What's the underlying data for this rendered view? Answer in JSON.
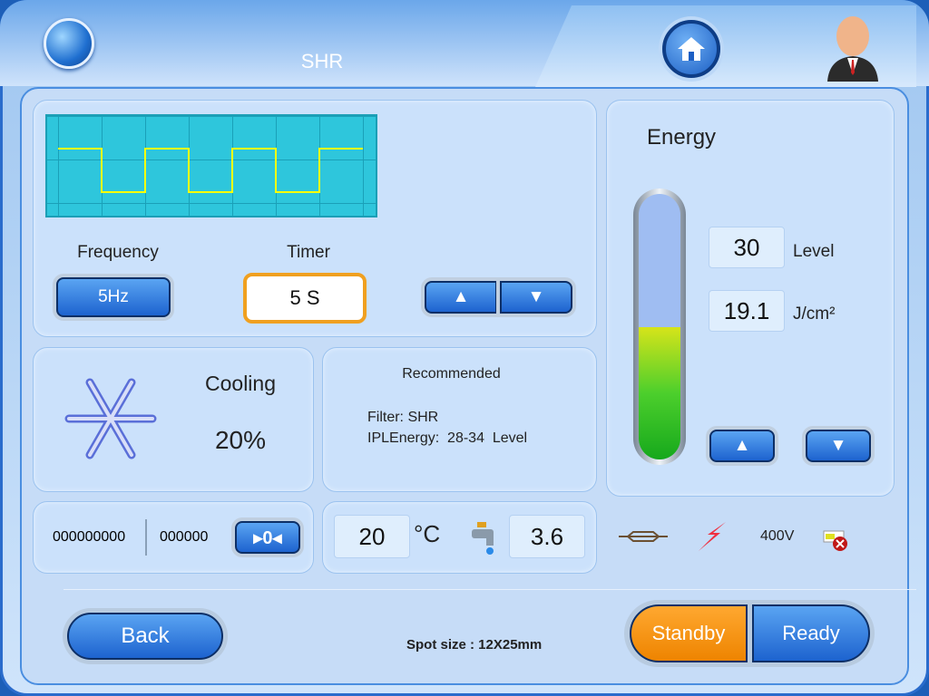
{
  "header": {
    "title": "SHR",
    "globe_icon": "globe-icon",
    "home_icon": "home-icon",
    "user_icon": "user-avatar-icon"
  },
  "pulse": {
    "frequency_label": "Frequency",
    "frequency_value": "5Hz",
    "timer_label": "Timer",
    "timer_value": "5 S"
  },
  "cooling": {
    "label": "Cooling",
    "value": "20%",
    "icon": "snowflake-icon"
  },
  "recommended": {
    "title": "Recommended",
    "filter": "Filter: SHR",
    "energy": "IPLEnergy:  28-34  Level"
  },
  "counters": {
    "total": "000000000",
    "session": "000000",
    "reset_label": "▸0◂"
  },
  "water": {
    "temperature": "20",
    "temp_unit": "°C",
    "flow": "3.6"
  },
  "status": {
    "voltage": "400V",
    "icons": [
      "lamp-icon",
      "high-voltage-icon",
      "battery-error-icon"
    ]
  },
  "energy": {
    "title": "Energy",
    "level": "30",
    "level_unit": "Level",
    "fluence": "19.1",
    "fluence_unit": "J/cm²",
    "fill_percent": 50
  },
  "footer": {
    "back_label": "Back",
    "spot_size": "Spot size : 12X25mm",
    "standby_label": "Standby",
    "ready_label": "Ready"
  },
  "colors": {
    "accent": "#1d63cf",
    "standby": "#f08c00",
    "wave": "#2ec6dc",
    "wave_line": "#ffff00"
  }
}
